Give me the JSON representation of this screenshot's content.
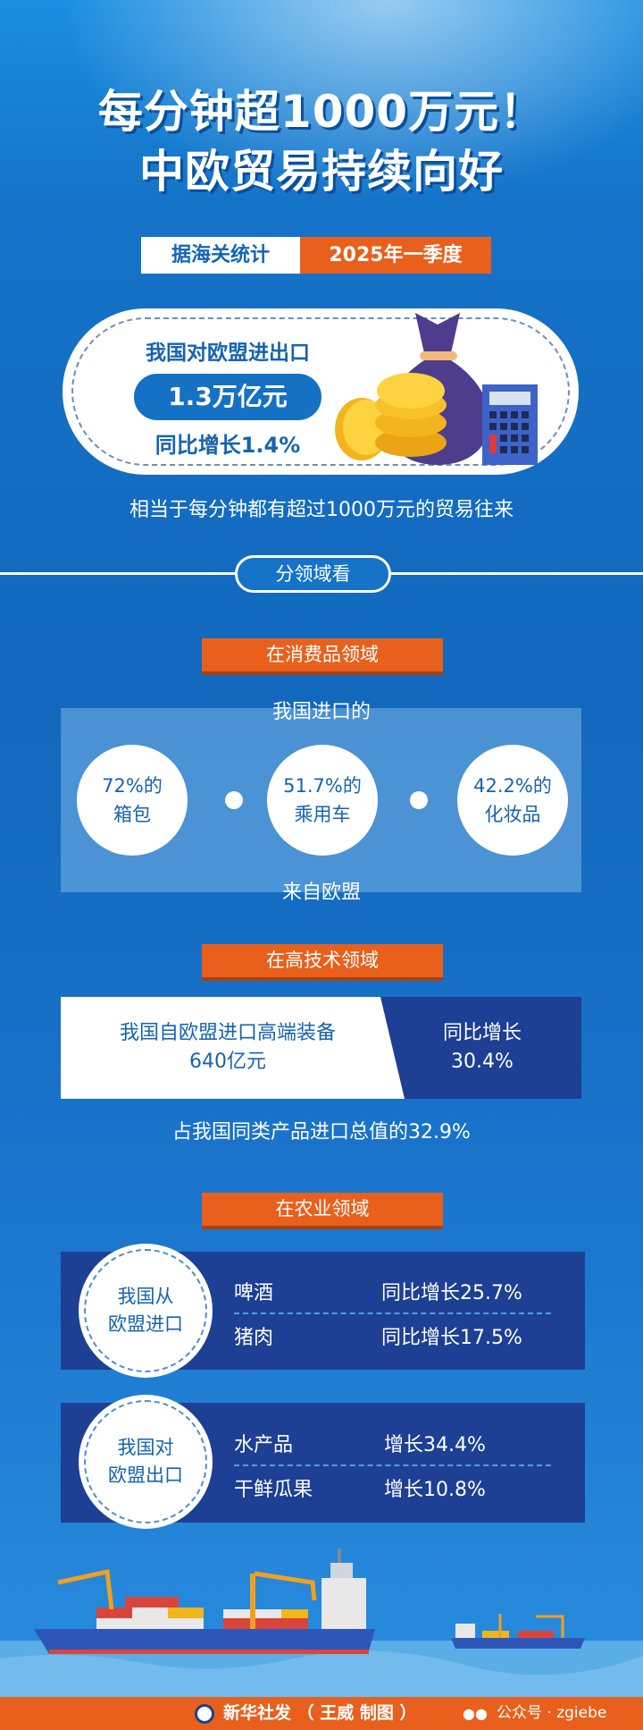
{
  "header": {
    "title_line1": "每分钟超1000万元！",
    "title_line2": "中欧贸易持续向好",
    "source_label": "据海关统计",
    "period_label": "2025年一季度"
  },
  "summary": {
    "label": "我国对欧盟进出口",
    "amount": "1.3万亿元",
    "growth": "同比增长1.4%",
    "note": "相当于每分钟都有超过1000万元的贸易往来"
  },
  "section_button": "分领域看",
  "consumer": {
    "banner": "在消费品领域",
    "top_text": "我国进口的",
    "bottom_text": "来自欧盟",
    "items": [
      {
        "pct": "72%的",
        "name": "箱包"
      },
      {
        "pct": "51.7%的",
        "name": "乘用车"
      },
      {
        "pct": "42.2%的",
        "name": "化妆品"
      }
    ]
  },
  "hightech": {
    "banner": "在高技术领域",
    "line1": "我国自欧盟进口高端装备",
    "line2": "640亿元",
    "growth1": "同比增长",
    "growth2": "30.4%",
    "note": "占我国同类产品进口总值的32.9%"
  },
  "agri": {
    "banner": "在农业领域",
    "import": {
      "label1": "我国从",
      "label2": "欧盟进口",
      "rows": [
        {
          "item": "啤酒",
          "value": "同比增长25.7%"
        },
        {
          "item": "猪肉",
          "value": "同比增长17.5%"
        }
      ]
    },
    "export": {
      "label1": "我国对",
      "label2": "欧盟出口",
      "rows": [
        {
          "item": "水产品",
          "value": "增长34.4%"
        },
        {
          "item": "干鲜瓜果",
          "value": "增长10.8%"
        }
      ]
    }
  },
  "footer": {
    "credit": "新华社发 （ 王威 制图 ）",
    "watermark": "公众号 · zgiebe"
  },
  "colors": {
    "blue": "#1573c8",
    "orange": "#e8601c",
    "navy": "#1d3f94"
  }
}
